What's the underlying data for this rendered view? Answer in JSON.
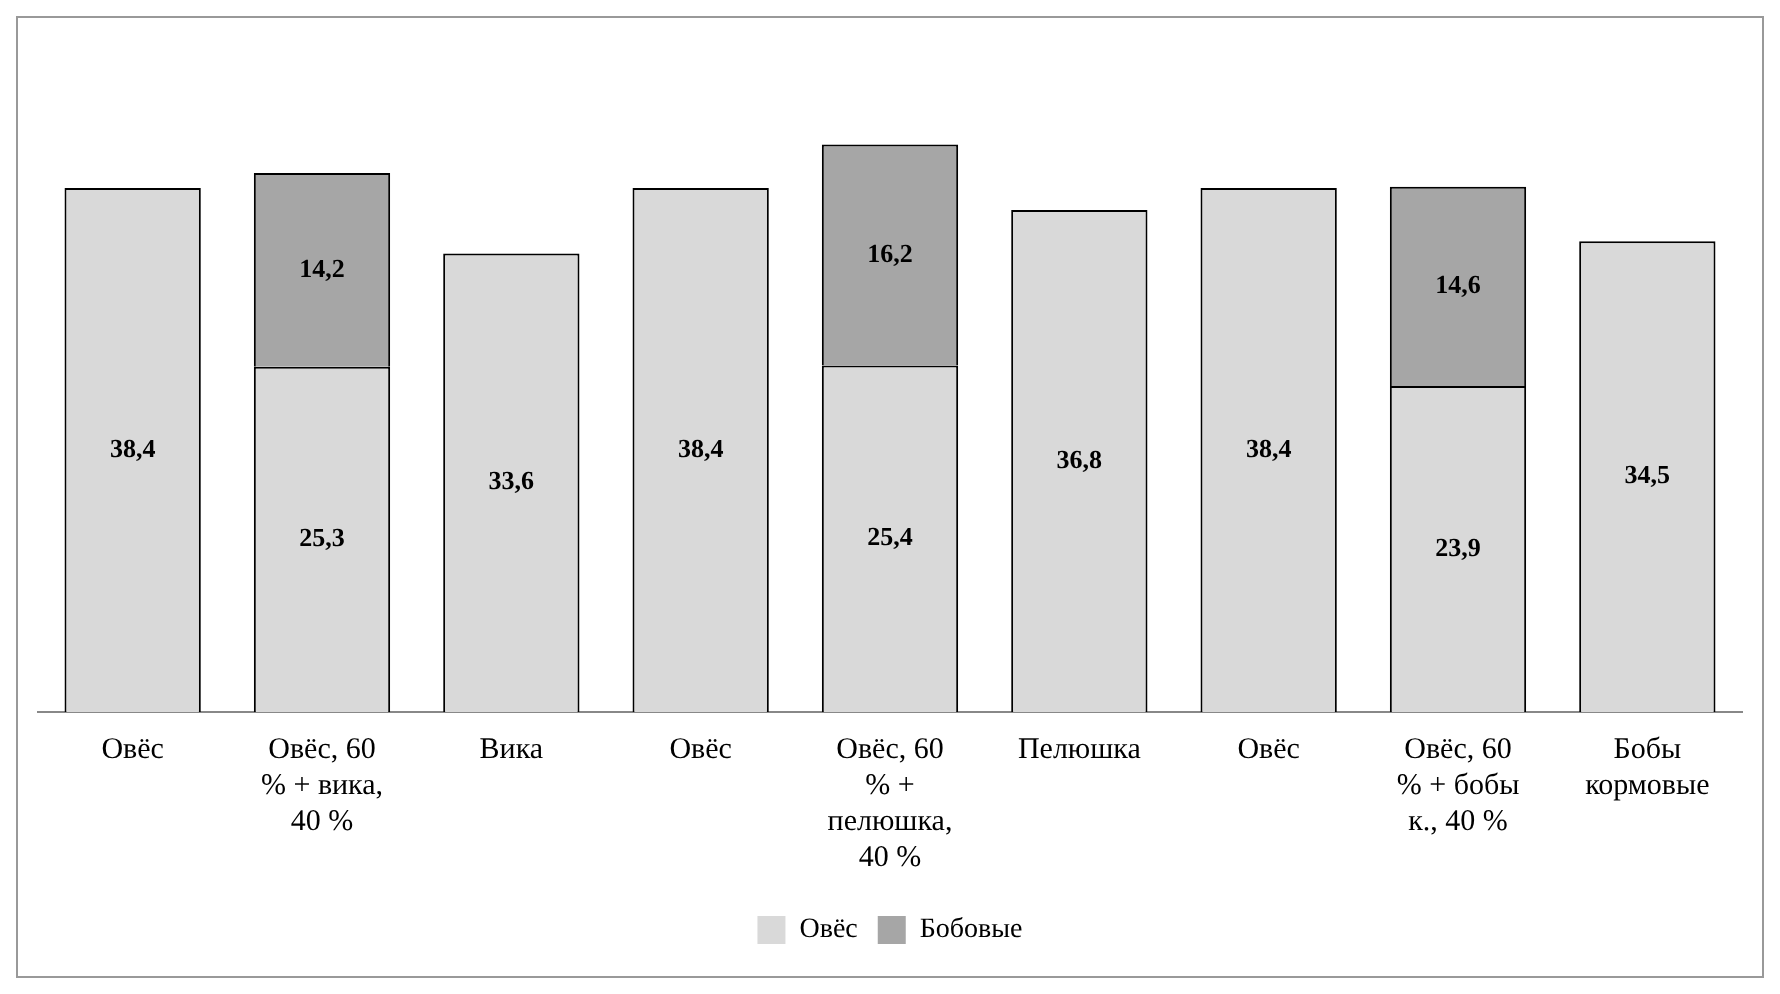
{
  "chart_data": {
    "type": "bar",
    "stacked": true,
    "categories": [
      "Овёс",
      "Овёс, 60 % + вика, 40 %",
      "Вика",
      "Овёс",
      "Овёс, 60 % + пелюшка, 40 %",
      "Пелюшка",
      "Овёс",
      "Овёс, 60 % + бобы к., 40 %",
      "Бобы кормовые"
    ],
    "series": [
      {
        "name": "Овёс",
        "color": "#d9d9d9",
        "values": [
          38.4,
          25.3,
          33.6,
          38.4,
          25.4,
          36.8,
          38.4,
          23.9,
          34.5
        ],
        "value_labels": [
          "38,4",
          "25,3",
          "33,6",
          "38,4",
          "25,4",
          "36,8",
          "38,4",
          "23,9",
          "34,5"
        ]
      },
      {
        "name": "Бобовые",
        "color": "#a6a6a6",
        "values": [
          null,
          14.2,
          null,
          null,
          16.2,
          null,
          null,
          14.6,
          null
        ],
        "value_labels": [
          null,
          "14,2",
          null,
          null,
          "16,2",
          null,
          null,
          "14,6",
          null
        ]
      }
    ],
    "legend": "bottom",
    "grid": false
  }
}
